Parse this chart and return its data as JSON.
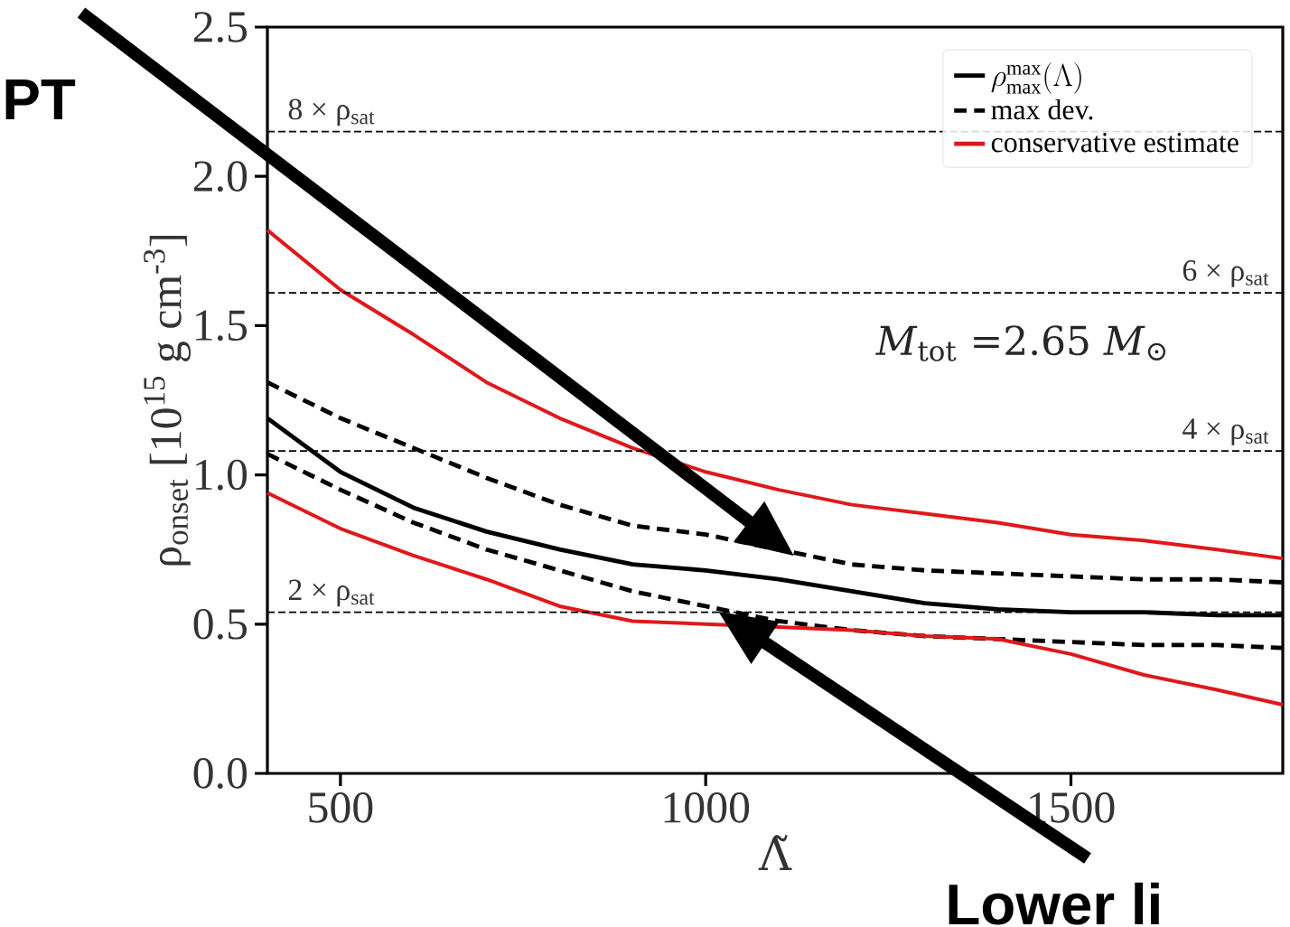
{
  "chart_data": {
    "type": "line",
    "xlabel": "Λ̃",
    "ylabel": "ρ$_{onset}$ [10$^{15}$ g cm$^{-3}$]",
    "x": [
      400,
      500,
      600,
      700,
      800,
      900,
      1000,
      1100,
      1200,
      1300,
      1400,
      1500,
      1600,
      1700,
      1790
    ],
    "series": [
      {
        "name": "\\rho^{\\rm max}_{\\rm max}(\\Lambda)",
        "color": "#000000",
        "line_style": "solid",
        "values": [
          1.19,
          1.01,
          0.89,
          0.81,
          0.75,
          0.7,
          0.68,
          0.65,
          0.61,
          0.57,
          0.55,
          0.54,
          0.54,
          0.53,
          0.53
        ]
      },
      {
        "name": "max dev.",
        "color": "#000000",
        "line_style": "dashed",
        "values": [
          1.31,
          1.19,
          1.09,
          0.99,
          0.9,
          0.83,
          0.8,
          0.75,
          0.7,
          0.68,
          0.67,
          0.66,
          0.65,
          0.65,
          0.64
        ]
      },
      {
        "color": "#000000",
        "line_style": "dashed",
        "values": [
          1.07,
          0.95,
          0.84,
          0.75,
          0.68,
          0.61,
          0.56,
          0.51,
          0.48,
          0.46,
          0.45,
          0.44,
          0.43,
          0.43,
          0.42
        ]
      },
      {
        "name": "conservative estimate",
        "color": "#e0181b",
        "line_style": "solid",
        "values": [
          1.82,
          1.62,
          1.47,
          1.31,
          1.19,
          1.09,
          1.01,
          0.95,
          0.9,
          0.87,
          0.84,
          0.8,
          0.78,
          0.75,
          0.72
        ]
      },
      {
        "color": "#e0181b",
        "line_style": "solid",
        "values": [
          0.94,
          0.82,
          0.73,
          0.65,
          0.56,
          0.51,
          0.5,
          0.49,
          0.48,
          0.46,
          0.45,
          0.4,
          0.33,
          0.28,
          0.23
        ]
      }
    ],
    "xlim": [
      400,
      1790
    ],
    "ylim": [
      0,
      2.5
    ],
    "xticks": [
      500,
      1000,
      1500
    ],
    "yticks": [
      {
        "value": 0,
        "label": "0.0"
      },
      0.5,
      {
        "value": 1,
        "label": "1.0"
      },
      1.5,
      {
        "value": 2,
        "label": "2.0"
      },
      2.5
    ],
    "ref_lines": [
      {
        "axis": "y",
        "value": 2.15,
        "label": "8 × ρ$_{sat}$",
        "line_style": "dashed",
        "color": "#000000"
      },
      {
        "axis": "y",
        "value": 1.61,
        "label": "6 × ρ$_{sat}$",
        "line_style": "dashed",
        "color": "#000000"
      },
      {
        "axis": "y",
        "value": 1.08,
        "label": "4 × ρ$_{sat}$",
        "line_style": "dashed",
        "color": "#000000"
      },
      {
        "axis": "y",
        "value": 0.54,
        "label": "2 × ρ$_{sat}$",
        "line_style": "dashed",
        "color": "#000000"
      }
    ],
    "annotations": [
      "*M*$_{tot}$ =2.65 *M*$_{⊙}$",
      "PT",
      "Lower li"
    ],
    "legend": "top right",
    "grid": false,
    "marker": "none"
  }
}
